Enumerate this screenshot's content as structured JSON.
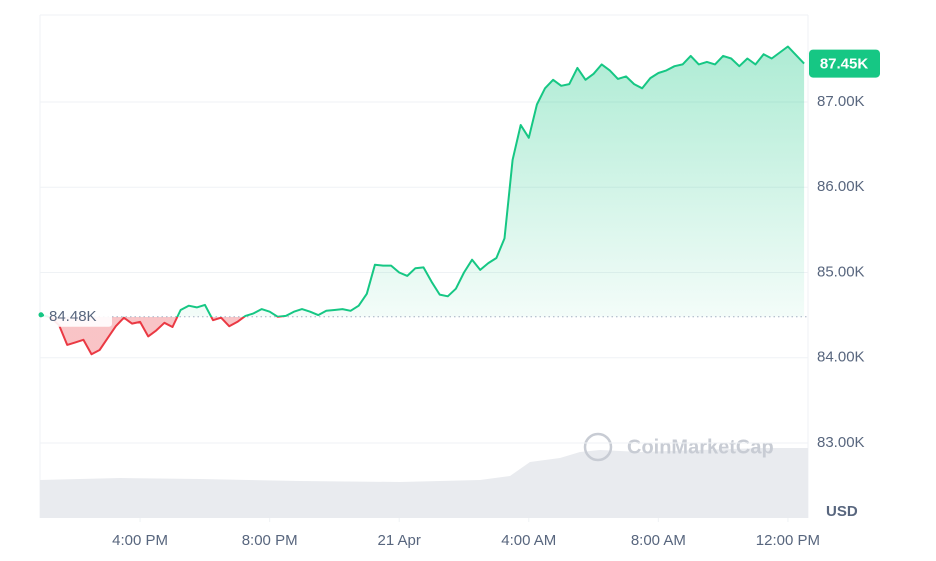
{
  "chart_data": {
    "type": "line",
    "x": [
      13,
      13.25,
      13.5,
      13.75,
      14,
      14.25,
      14.5,
      14.75,
      15,
      15.25,
      15.5,
      15.75,
      16,
      16.25,
      16.5,
      16.75,
      17,
      17.25,
      17.5,
      17.75,
      18,
      18.25,
      18.5,
      18.75,
      19,
      19.25,
      19.5,
      19.75,
      20,
      20.25,
      20.5,
      20.75,
      21,
      21.25,
      21.5,
      21.75,
      22,
      22.25,
      22.5,
      22.75,
      23,
      23.25,
      23.5,
      23.75,
      24,
      24.25,
      24.5,
      24.75,
      25,
      25.25,
      25.5,
      25.75,
      26,
      26.25,
      26.5,
      26.75,
      27,
      27.25,
      27.5,
      27.75,
      28,
      28.25,
      28.5,
      28.75,
      29,
      29.25,
      29.5,
      29.75,
      30,
      30.25,
      30.5,
      30.75,
      31,
      31.25,
      31.5,
      31.75,
      32,
      32.25,
      32.5,
      32.75,
      33,
      33.25,
      33.5,
      33.75,
      34,
      34.25,
      34.5,
      34.75,
      35,
      35.25,
      35.5,
      35.75,
      36,
      36.25,
      36.5
    ],
    "values": [
      84.5,
      84.47,
      84.38,
      84.15,
      84.18,
      84.21,
      84.04,
      84.09,
      84.23,
      84.37,
      84.47,
      84.4,
      84.42,
      84.25,
      84.32,
      84.41,
      84.36,
      84.56,
      84.61,
      84.59,
      84.62,
      84.44,
      84.47,
      84.37,
      84.42,
      84.49,
      84.52,
      84.57,
      84.54,
      84.48,
      84.49,
      84.54,
      84.57,
      84.54,
      84.5,
      84.55,
      84.56,
      84.57,
      84.55,
      84.61,
      84.75,
      85.09,
      85.08,
      85.08,
      85.0,
      84.96,
      85.05,
      85.06,
      84.89,
      84.74,
      84.72,
      84.81,
      85.0,
      85.15,
      85.03,
      85.11,
      85.17,
      85.4,
      86.32,
      86.73,
      86.58,
      86.97,
      87.16,
      87.26,
      87.19,
      87.21,
      87.4,
      87.26,
      87.33,
      87.44,
      87.37,
      87.27,
      87.3,
      87.21,
      87.16,
      87.28,
      87.34,
      87.37,
      87.42,
      87.44,
      87.54,
      87.44,
      87.47,
      87.44,
      87.54,
      87.51,
      87.42,
      87.51,
      87.44,
      87.56,
      87.51,
      87.58,
      87.65,
      87.55,
      87.45
    ],
    "color": "#16c784",
    "down_color": "#ea3943",
    "baseline": {
      "value": 84.48,
      "label": "84.48K"
    },
    "last_price": {
      "value": 87.45,
      "label": "87.45K"
    },
    "xlim": [
      12.91,
      36.62
    ],
    "xticks": [
      {
        "value": 16,
        "label": "4:00 PM"
      },
      {
        "value": 20,
        "label": "8:00 PM"
      },
      {
        "value": 24,
        "label": "21 Apr"
      },
      {
        "value": 28,
        "label": "4:00 AM"
      },
      {
        "value": 32,
        "label": "8:00 AM"
      },
      {
        "value": 36,
        "label": "12:00 PM"
      }
    ],
    "ylim": [
      82.12,
      88.02
    ],
    "yticks": [
      {
        "value": 83,
        "label": "83.00K"
      },
      {
        "value": 84,
        "label": "84.00K"
      },
      {
        "value": 85,
        "label": "85.00K"
      },
      {
        "value": 86,
        "label": "86.00K"
      },
      {
        "value": 87,
        "label": "87.00K"
      }
    ],
    "y_label": "USD",
    "watermark": "CoinMarketCap",
    "grid": true
  }
}
